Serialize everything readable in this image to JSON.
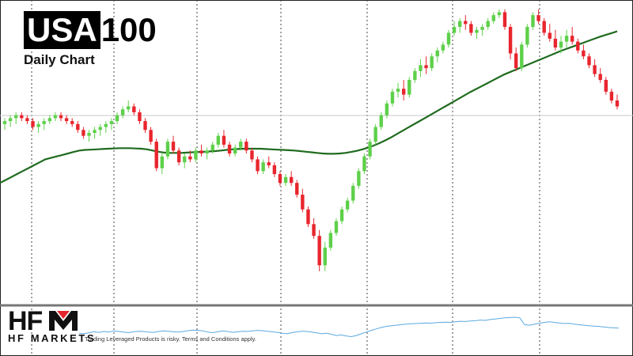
{
  "header": {
    "title_box": "USA",
    "title_rest": "100",
    "subtitle": "Daily Chart"
  },
  "brand": {
    "logo_text": "HFM",
    "logo_subtitle": "HF MARKETS",
    "disclaimer": "Trading Leveraged Products is risky. Terms and Conditions apply."
  },
  "colors": {
    "bull": "#5ed04a",
    "bear": "#e8252d",
    "ma": "#1f6b1f",
    "indicator": "#5aa9e0",
    "grid": "#444444",
    "logo_red": "#e3262d"
  },
  "chart_data": {
    "type": "candlestick",
    "y_range": [
      0,
      100
    ],
    "grid": true,
    "candles": [
      [
        60,
        62,
        58,
        61
      ],
      [
        61,
        63,
        59,
        62
      ],
      [
        62,
        64,
        60,
        63
      ],
      [
        63,
        64,
        61,
        62
      ],
      [
        62,
        63,
        60,
        61
      ],
      [
        61,
        62,
        58,
        59
      ],
      [
        59,
        61,
        57,
        60
      ],
      [
        60,
        62,
        58,
        61
      ],
      [
        61,
        63,
        60,
        62
      ],
      [
        62,
        64,
        61,
        63
      ],
      [
        63,
        64,
        61,
        62
      ],
      [
        62,
        63,
        60,
        61
      ],
      [
        61,
        62,
        59,
        60
      ],
      [
        60,
        61,
        57,
        58
      ],
      [
        58,
        59,
        55,
        56
      ],
      [
        56,
        58,
        54,
        57
      ],
      [
        57,
        59,
        55,
        58
      ],
      [
        58,
        60,
        56,
        59
      ],
      [
        59,
        61,
        57,
        60
      ],
      [
        60,
        62,
        58,
        61
      ],
      [
        61,
        64,
        60,
        63
      ],
      [
        63,
        66,
        62,
        65
      ],
      [
        65,
        68,
        64,
        66
      ],
      [
        66,
        67,
        63,
        64
      ],
      [
        64,
        65,
        60,
        61
      ],
      [
        61,
        62,
        57,
        58
      ],
      [
        58,
        59,
        53,
        54
      ],
      [
        54,
        55,
        44,
        45
      ],
      [
        45,
        50,
        43,
        49
      ],
      [
        49,
        55,
        48,
        54
      ],
      [
        54,
        56,
        50,
        51
      ],
      [
        51,
        52,
        46,
        47
      ],
      [
        47,
        50,
        45,
        49
      ],
      [
        49,
        51,
        47,
        48
      ],
      [
        48,
        52,
        47,
        51
      ],
      [
        51,
        53,
        49,
        50
      ],
      [
        50,
        52,
        48,
        51
      ],
      [
        51,
        54,
        50,
        53
      ],
      [
        53,
        57,
        52,
        56
      ],
      [
        56,
        58,
        52,
        53
      ],
      [
        53,
        54,
        49,
        50
      ],
      [
        50,
        53,
        49,
        52
      ],
      [
        52,
        55,
        51,
        54
      ],
      [
        54,
        55,
        50,
        51
      ],
      [
        51,
        52,
        47,
        48
      ],
      [
        48,
        49,
        43,
        44
      ],
      [
        44,
        48,
        43,
        47
      ],
      [
        47,
        49,
        45,
        46
      ],
      [
        46,
        47,
        42,
        43
      ],
      [
        43,
        44,
        39,
        40
      ],
      [
        40,
        43,
        39,
        42
      ],
      [
        42,
        44,
        39,
        40
      ],
      [
        40,
        41,
        35,
        36
      ],
      [
        36,
        38,
        30,
        31
      ],
      [
        31,
        32,
        25,
        26
      ],
      [
        26,
        28,
        21,
        22
      ],
      [
        22,
        24,
        10,
        12
      ],
      [
        12,
        20,
        10,
        18
      ],
      [
        18,
        24,
        17,
        23
      ],
      [
        23,
        28,
        22,
        27
      ],
      [
        27,
        32,
        26,
        31
      ],
      [
        31,
        35,
        30,
        34
      ],
      [
        34,
        40,
        33,
        39
      ],
      [
        39,
        45,
        38,
        44
      ],
      [
        44,
        50,
        43,
        49
      ],
      [
        49,
        55,
        48,
        54
      ],
      [
        54,
        60,
        53,
        59
      ],
      [
        59,
        64,
        58,
        63
      ],
      [
        63,
        68,
        62,
        67
      ],
      [
        67,
        72,
        66,
        71
      ],
      [
        71,
        74,
        69,
        72
      ],
      [
        72,
        75,
        68,
        70
      ],
      [
        70,
        76,
        69,
        75
      ],
      [
        75,
        79,
        74,
        78
      ],
      [
        78,
        82,
        76,
        80
      ],
      [
        80,
        83,
        77,
        79
      ],
      [
        79,
        84,
        78,
        83
      ],
      [
        83,
        86,
        81,
        85
      ],
      [
        85,
        88,
        84,
        87
      ],
      [
        87,
        92,
        86,
        91
      ],
      [
        91,
        95,
        90,
        93
      ],
      [
        93,
        96,
        91,
        95
      ],
      [
        95,
        97,
        92,
        94
      ],
      [
        94,
        95,
        90,
        91
      ],
      [
        91,
        93,
        89,
        92
      ],
      [
        92,
        94,
        90,
        93
      ],
      [
        93,
        96,
        92,
        95
      ],
      [
        95,
        98,
        94,
        97
      ],
      [
        97,
        99,
        96,
        98
      ],
      [
        98,
        99,
        92,
        93
      ],
      [
        93,
        94,
        82,
        84
      ],
      [
        84,
        86,
        78,
        79
      ],
      [
        79,
        88,
        78,
        87
      ],
      [
        87,
        94,
        86,
        93
      ],
      [
        93,
        98,
        92,
        97
      ],
      [
        97,
        99,
        94,
        95
      ],
      [
        95,
        96,
        90,
        91
      ],
      [
        91,
        94,
        88,
        89
      ],
      [
        89,
        92,
        85,
        86
      ],
      [
        86,
        90,
        84,
        88
      ],
      [
        88,
        92,
        86,
        90
      ],
      [
        90,
        93,
        87,
        88
      ],
      [
        88,
        89,
        84,
        85
      ],
      [
        85,
        87,
        82,
        83
      ],
      [
        83,
        84,
        79,
        80
      ],
      [
        80,
        82,
        76,
        77
      ],
      [
        77,
        79,
        74,
        75
      ],
      [
        75,
        76,
        70,
        71
      ],
      [
        71,
        72,
        67,
        68
      ],
      [
        68,
        70,
        65,
        66
      ]
    ],
    "moving_average": [
      40,
      41,
      42,
      43,
      44,
      45,
      46,
      47,
      48,
      48.5,
      49,
      49.5,
      50,
      50.5,
      51,
      51.2,
      51.3,
      51.4,
      51.5,
      51.6,
      51.7,
      51.8,
      51.8,
      51.8,
      51.7,
      51.6,
      51.4,
      51.0,
      50.6,
      50.3,
      50.2,
      50.2,
      50.2,
      50.3,
      50.4,
      50.5,
      50.6,
      50.7,
      50.8,
      51.0,
      51.2,
      51.4,
      51.5,
      51.6,
      51.6,
      51.6,
      51.6,
      51.5,
      51.4,
      51.3,
      51.2,
      51.1,
      51.0,
      50.8,
      50.6,
      50.4,
      50.2,
      50.0,
      49.9,
      49.9,
      50.0,
      50.2,
      50.5,
      50.9,
      51.4,
      52.0,
      52.7,
      53.5,
      54.4,
      55.4,
      56.5,
      57.6,
      58.7,
      59.8,
      60.9,
      62.0,
      63.1,
      64.2,
      65.3,
      66.4,
      67.5,
      68.6,
      69.7,
      70.8,
      71.8,
      72.8,
      73.8,
      74.8,
      75.8,
      76.8,
      77.6,
      78.4,
      79.2,
      80.0,
      80.8,
      81.6,
      82.4,
      83.2,
      84.0,
      84.8,
      85.5,
      86.2,
      86.9,
      87.6,
      88.3,
      89.0,
      89.7,
      90.3,
      90.9,
      91.5
    ],
    "indicator": [
      30,
      28,
      32,
      35,
      33,
      36,
      34,
      38,
      36,
      34,
      32,
      35,
      37,
      36,
      34,
      33,
      36,
      38,
      37,
      35,
      34,
      36,
      39,
      41,
      40,
      38,
      34,
      32,
      35,
      38,
      36,
      33,
      35,
      37,
      36,
      38,
      40,
      39,
      37,
      35,
      33,
      30,
      28,
      32,
      35,
      37,
      36,
      34,
      31,
      28,
      30,
      26,
      22,
      24,
      20,
      18,
      22,
      28,
      34,
      40,
      45,
      50,
      54,
      56,
      58,
      60,
      62,
      63,
      64,
      65,
      66,
      65,
      67,
      68,
      69,
      68,
      70,
      72,
      71,
      73,
      74,
      76,
      75,
      78,
      80,
      82,
      84,
      85,
      86,
      84,
      60,
      58,
      62,
      65,
      68,
      70,
      68,
      66,
      64,
      65,
      62,
      60,
      58,
      56,
      55,
      54,
      52,
      50,
      49,
      48
    ]
  }
}
